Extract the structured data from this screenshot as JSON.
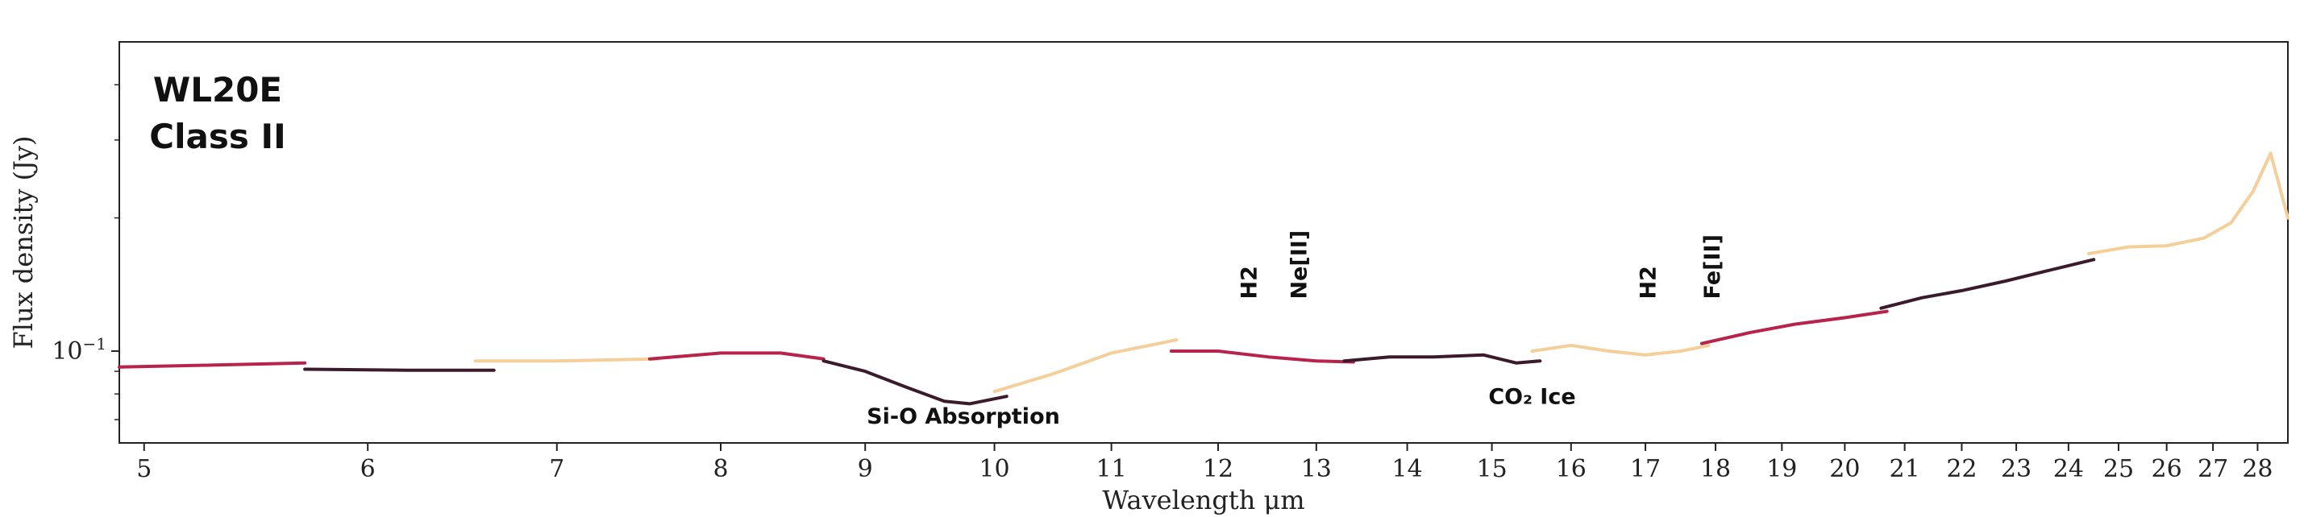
{
  "chart_data": {
    "type": "line",
    "title_lines": [
      "WL20E",
      "Class II"
    ],
    "xlabel": "Wavelength μm",
    "ylabel": "Flux density (Jy)",
    "xlim": [
      4.9,
      28.7
    ],
    "ylim": [
      0.062,
      0.5
    ],
    "xscale": "log",
    "yscale": "log",
    "grid": false,
    "xticks": [
      5,
      6,
      7,
      8,
      9,
      10,
      11,
      12,
      13,
      14,
      15,
      16,
      17,
      18,
      19,
      20,
      21,
      22,
      23,
      24,
      25,
      26,
      27,
      28
    ],
    "yticks": [
      {
        "value": 0.1,
        "label": "10−1"
      }
    ],
    "colors": {
      "crimson": "#b8234c",
      "dark": "#3b1a2c",
      "peach": "#f5cf9a"
    },
    "series": [
      {
        "color": "crimson",
        "x": [
          4.9,
          5.3,
          5.7
        ],
        "y": [
          0.092,
          0.093,
          0.094
        ]
      },
      {
        "color": "dark",
        "x": [
          5.7,
          6.2,
          6.65
        ],
        "y": [
          0.091,
          0.0905,
          0.0905
        ]
      },
      {
        "color": "peach",
        "x": [
          6.55,
          7.0,
          7.6
        ],
        "y": [
          0.095,
          0.095,
          0.096
        ]
      },
      {
        "color": "crimson",
        "x": [
          7.55,
          8.0,
          8.4,
          8.7
        ],
        "y": [
          0.096,
          0.099,
          0.099,
          0.096
        ]
      },
      {
        "color": "dark",
        "x": [
          8.7,
          9.0,
          9.3,
          9.6,
          9.8,
          10.1
        ],
        "y": [
          0.095,
          0.09,
          0.083,
          0.077,
          0.076,
          0.079
        ]
      },
      {
        "color": "peach",
        "x": [
          10.0,
          10.5,
          11.0,
          11.6
        ],
        "y": [
          0.081,
          0.089,
          0.099,
          0.106
        ]
      },
      {
        "color": "crimson",
        "x": [
          11.55,
          12.0,
          12.5,
          13.0,
          13.4
        ],
        "y": [
          0.1,
          0.1,
          0.097,
          0.095,
          0.0945
        ]
      },
      {
        "color": "dark",
        "x": [
          13.3,
          13.8,
          14.3,
          14.9,
          15.3,
          15.6
        ],
        "y": [
          0.095,
          0.097,
          0.097,
          0.098,
          0.094,
          0.095
        ]
      },
      {
        "color": "peach",
        "x": [
          15.5,
          16.0,
          16.5,
          17.0,
          17.5,
          17.9
        ],
        "y": [
          0.1,
          0.103,
          0.1,
          0.098,
          0.1,
          0.103
        ]
      },
      {
        "color": "crimson",
        "x": [
          17.8,
          18.5,
          19.2,
          20.0,
          20.7
        ],
        "y": [
          0.104,
          0.11,
          0.115,
          0.119,
          0.123
        ]
      },
      {
        "color": "dark",
        "x": [
          20.6,
          21.3,
          22.0,
          22.8,
          23.6,
          24.5
        ],
        "y": [
          0.125,
          0.132,
          0.137,
          0.144,
          0.152,
          0.161
        ]
      },
      {
        "color": "peach",
        "x": [
          24.4,
          25.2,
          26.0,
          26.8,
          27.4,
          27.9,
          28.3,
          28.7
        ],
        "y": [
          0.166,
          0.172,
          0.173,
          0.18,
          0.195,
          0.23,
          0.28,
          0.2
        ]
      }
    ],
    "annotations": [
      {
        "text": "Si-O Absorption",
        "x": 9.75,
        "y": 0.0685
      },
      {
        "text": "CO₂ Ice",
        "x": 15.5,
        "y": 0.076
      },
      {
        "text": "H2",
        "x": 12.3,
        "y": 0.131,
        "rotate": true
      },
      {
        "text": "Ne[II]",
        "x": 12.81,
        "y": 0.131,
        "rotate": true
      },
      {
        "text": "H2",
        "x": 17.03,
        "y": 0.131,
        "rotate": true
      },
      {
        "text": "Fe[II]",
        "x": 17.94,
        "y": 0.131,
        "rotate": true
      }
    ]
  }
}
